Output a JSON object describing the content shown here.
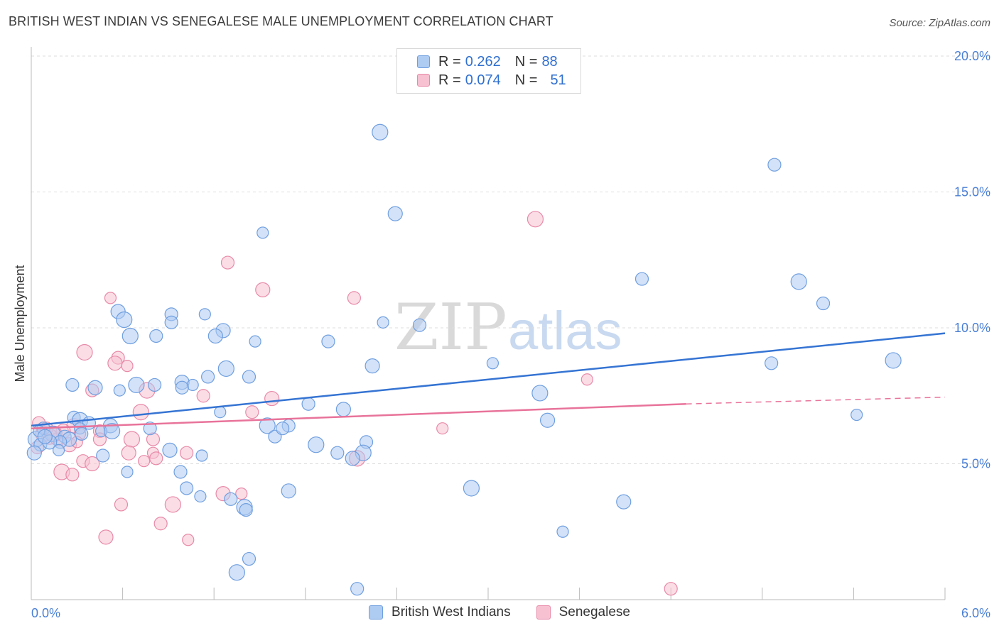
{
  "header": {
    "title": "BRITISH WEST INDIAN VS SENEGALESE MALE UNEMPLOYMENT CORRELATION CHART",
    "source": "Source: ZipAtlas.com"
  },
  "watermark": {
    "zip": "ZIP",
    "atlas": "atlas"
  },
  "legend": {
    "r_label": "R =",
    "n_label": "N =",
    "rows": [
      {
        "r": "0.262",
        "n": "88",
        "fill": "#aecbf2",
        "stroke": "#6f9fe0"
      },
      {
        "r": "0.074",
        "n": "51",
        "fill": "#f7c1d2",
        "stroke": "#e88aa8"
      }
    ]
  },
  "bottom_legend": {
    "items": [
      {
        "label": "British West Indians",
        "fill": "#aecbf2",
        "stroke": "#6f9fe0"
      },
      {
        "label": "Senegalese",
        "fill": "#f7c1d2",
        "stroke": "#e88aa8"
      }
    ]
  },
  "chart_data": {
    "type": "scatter",
    "title": "BRITISH WEST INDIAN VS SENEGALESE MALE UNEMPLOYMENT CORRELATION CHART",
    "xlabel": "",
    "ylabel": "Male Unemployment",
    "xlim": [
      0,
      6
    ],
    "ylim": [
      0,
      20
    ],
    "x_tick_labels": [
      "0.0%",
      "6.0%"
    ],
    "y_ticks": [
      {
        "value": 5,
        "label": "5.0%"
      },
      {
        "value": 10,
        "label": "10.0%"
      },
      {
        "value": 15,
        "label": "15.0%"
      },
      {
        "value": 20,
        "label": "20.0%"
      }
    ],
    "grid": "horizontal-dashed",
    "colors": {
      "blue": "#3574d3",
      "pink": "#e8739a"
    },
    "series": [
      {
        "name": "British West Indians",
        "r": 0.262,
        "n": 88,
        "trend": {
          "x0": 0.0,
          "y0": 6.4,
          "x1": 6.0,
          "y1": 9.8
        },
        "points": [
          [
            2.29,
            17.2
          ],
          [
            4.88,
            16.0
          ],
          [
            2.39,
            14.2
          ],
          [
            1.52,
            13.5
          ],
          [
            4.01,
            11.8
          ],
          [
            5.04,
            11.7
          ],
          [
            5.2,
            10.9
          ],
          [
            0.57,
            10.6
          ],
          [
            1.14,
            10.5
          ],
          [
            0.92,
            10.5
          ],
          [
            0.61,
            10.3
          ],
          [
            0.92,
            10.2
          ],
          [
            1.26,
            9.9
          ],
          [
            2.31,
            10.2
          ],
          [
            2.55,
            10.1
          ],
          [
            0.65,
            9.7
          ],
          [
            0.82,
            9.7
          ],
          [
            1.21,
            9.7
          ],
          [
            1.47,
            9.5
          ],
          [
            1.95,
            9.5
          ],
          [
            0.69,
            7.9
          ],
          [
            0.81,
            7.9
          ],
          [
            0.99,
            8.0
          ],
          [
            1.06,
            7.9
          ],
          [
            1.16,
            8.2
          ],
          [
            1.28,
            8.5
          ],
          [
            1.43,
            8.2
          ],
          [
            2.24,
            8.6
          ],
          [
            3.03,
            8.7
          ],
          [
            4.86,
            8.7
          ],
          [
            5.66,
            8.8
          ],
          [
            0.27,
            7.9
          ],
          [
            0.42,
            7.8
          ],
          [
            0.58,
            7.7
          ],
          [
            0.99,
            7.8
          ],
          [
            3.34,
            7.6
          ],
          [
            1.82,
            7.2
          ],
          [
            2.05,
            7.0
          ],
          [
            1.24,
            6.9
          ],
          [
            0.28,
            6.7
          ],
          [
            0.32,
            6.6
          ],
          [
            0.38,
            6.5
          ],
          [
            0.52,
            6.4
          ],
          [
            0.46,
            6.2
          ],
          [
            0.78,
            6.3
          ],
          [
            1.55,
            6.4
          ],
          [
            1.69,
            6.4
          ],
          [
            3.39,
            6.6
          ],
          [
            5.42,
            6.8
          ],
          [
            0.08,
            6.3
          ],
          [
            0.14,
            6.1
          ],
          [
            0.22,
            6.0
          ],
          [
            0.25,
            5.9
          ],
          [
            0.32,
            6.3
          ],
          [
            0.19,
            5.8
          ],
          [
            0.03,
            5.9
          ],
          [
            0.06,
            5.7
          ],
          [
            0.12,
            5.8
          ],
          [
            0.18,
            5.5
          ],
          [
            1.6,
            6.0
          ],
          [
            1.87,
            5.7
          ],
          [
            2.2,
            5.8
          ],
          [
            0.91,
            5.5
          ],
          [
            1.12,
            5.3
          ],
          [
            2.01,
            5.4
          ],
          [
            2.18,
            5.4
          ],
          [
            0.47,
            5.3
          ],
          [
            2.11,
            5.2
          ],
          [
            0.63,
            4.7
          ],
          [
            0.98,
            4.7
          ],
          [
            2.89,
            4.1
          ],
          [
            1.02,
            4.1
          ],
          [
            1.69,
            4.0
          ],
          [
            1.11,
            3.8
          ],
          [
            1.31,
            3.7
          ],
          [
            1.4,
            3.4
          ],
          [
            1.41,
            3.3
          ],
          [
            3.89,
            3.6
          ],
          [
            3.49,
            2.5
          ],
          [
            1.43,
            1.5
          ],
          [
            1.35,
            1.0
          ],
          [
            2.14,
            0.4
          ],
          [
            0.02,
            5.4
          ],
          [
            0.05,
            6.2
          ],
          [
            0.33,
            6.1
          ],
          [
            0.53,
            6.2
          ],
          [
            1.65,
            6.3
          ],
          [
            0.09,
            6.0
          ]
        ]
      },
      {
        "name": "Senegalese",
        "r": 0.074,
        "n": 51,
        "trend": {
          "x0": 0.0,
          "y0": 6.3,
          "x1": 4.3,
          "y1": 7.2,
          "dash_to_x": 6.0,
          "dash_to_y": 7.45
        },
        "points": [
          [
            3.31,
            14.0
          ],
          [
            1.29,
            12.4
          ],
          [
            1.52,
            11.4
          ],
          [
            0.52,
            11.1
          ],
          [
            2.12,
            11.1
          ],
          [
            0.35,
            9.1
          ],
          [
            0.57,
            8.9
          ],
          [
            0.55,
            8.7
          ],
          [
            0.63,
            8.6
          ],
          [
            0.4,
            7.7
          ],
          [
            0.76,
            7.7
          ],
          [
            1.13,
            7.5
          ],
          [
            1.58,
            7.4
          ],
          [
            3.65,
            8.1
          ],
          [
            1.45,
            6.9
          ],
          [
            0.72,
            6.9
          ],
          [
            0.05,
            6.5
          ],
          [
            0.28,
            6.4
          ],
          [
            0.32,
            6.1
          ],
          [
            0.45,
            6.2
          ],
          [
            0.12,
            6.0
          ],
          [
            0.17,
            5.9
          ],
          [
            0.25,
            5.7
          ],
          [
            2.7,
            6.3
          ],
          [
            0.45,
            5.9
          ],
          [
            0.66,
            5.9
          ],
          [
            0.8,
            5.9
          ],
          [
            0.64,
            5.4
          ],
          [
            0.8,
            5.4
          ],
          [
            1.02,
            5.4
          ],
          [
            2.14,
            5.2
          ],
          [
            0.34,
            5.1
          ],
          [
            0.4,
            5.0
          ],
          [
            0.74,
            5.1
          ],
          [
            0.82,
            5.2
          ],
          [
            0.2,
            4.7
          ],
          [
            0.27,
            4.6
          ],
          [
            1.26,
            3.9
          ],
          [
            1.38,
            3.9
          ],
          [
            0.59,
            3.5
          ],
          [
            0.93,
            3.5
          ],
          [
            0.85,
            2.8
          ],
          [
            0.49,
            2.3
          ],
          [
            1.03,
            2.2
          ],
          [
            4.2,
            0.4
          ],
          [
            0.08,
            6.1
          ],
          [
            0.1,
            6.3
          ],
          [
            0.21,
            6.2
          ],
          [
            0.3,
            5.8
          ],
          [
            0.04,
            5.6
          ],
          [
            0.15,
            6.1
          ]
        ]
      }
    ]
  }
}
